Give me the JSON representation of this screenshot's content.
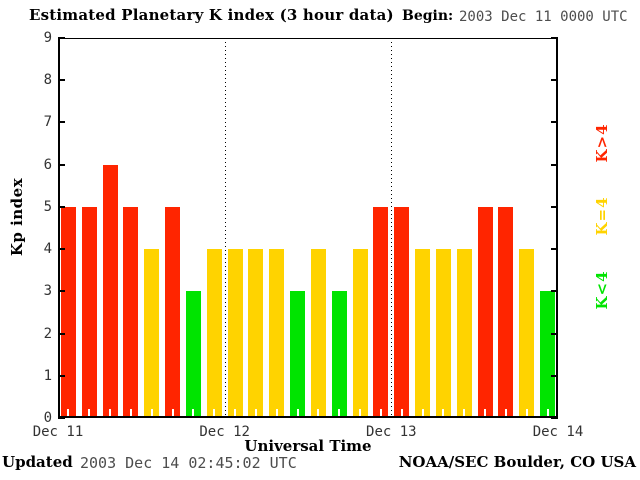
{
  "title": "Estimated Planetary K index (3 hour data)",
  "header": {
    "begin_label": "Begin:",
    "begin_value": "2003 Dec 11 0000 UTC"
  },
  "footer": {
    "updated_label": "Updated",
    "updated_value": "2003 Dec 14 02:45:02 UTC",
    "credit": "NOAA/SEC Boulder, CO USA"
  },
  "colors": {
    "red": "#ff2500",
    "yellow": "#ffd300",
    "green": "#00e400",
    "gray_text": "#4d4d4d",
    "tick_text": "#333333"
  },
  "chart_data": {
    "type": "bar",
    "title": "Estimated Planetary K index (3 hour data)",
    "begin": "2003 Dec 11 0000 UTC",
    "xlabel": "Universal Time",
    "ylabel": "Kp index",
    "ylim": [
      0,
      9
    ],
    "y_ticks": [
      0,
      1,
      2,
      3,
      4,
      5,
      6,
      7,
      8,
      9
    ],
    "x_tick_labels": [
      "Dec 11",
      "Dec 12",
      "Dec 13",
      "Dec 14"
    ],
    "bars_per_day": 8,
    "bin_hours": 3,
    "values": [
      5,
      5,
      6,
      5,
      4,
      5,
      3,
      4,
      4,
      4,
      4,
      3,
      4,
      3,
      4,
      5,
      5,
      4,
      4,
      4,
      5,
      5,
      4,
      3
    ],
    "color_rule": {
      "below_4": "#00e400",
      "equal_4": "#ffd300",
      "above_4": "#ff2500"
    },
    "grid": "dotted vertical lines at day boundaries",
    "legend_position": "right, rotated 90deg",
    "legend": [
      {
        "label": "K>4",
        "color": "#ff2500"
      },
      {
        "label": "K=4",
        "color": "#ffd300"
      },
      {
        "label": "K<4",
        "color": "#00e400"
      }
    ]
  }
}
